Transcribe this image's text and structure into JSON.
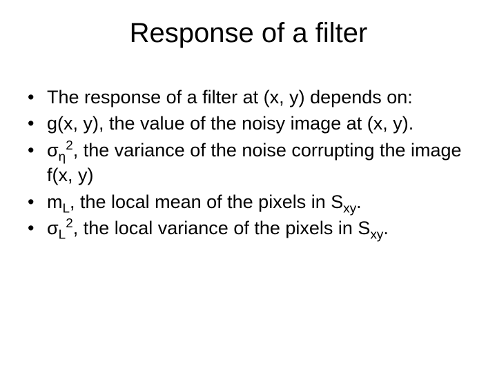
{
  "title": "Response of a filter",
  "bullets": [
    {
      "html": "The response of a filter at (x, y) depends on:"
    },
    {
      "html": "g(x, y), the value of the noisy image at (x, y)."
    },
    {
      "html": "σ<sub>η</sub><sup>2</sup>, the variance of the noise corrupting the image f(x, y)"
    },
    {
      "html": "m<sub>L</sub>, the local mean of the pixels in S<sub>xy</sub>."
    },
    {
      "html": "σ<sub>L</sub><sup>2</sup>, the local variance of the pixels in S<sub>xy</sub>."
    }
  ],
  "colors": {
    "background": "#ffffff",
    "text": "#000000"
  },
  "typography": {
    "title_fontsize": 40,
    "body_fontsize": 27,
    "font_family": "Arial"
  }
}
